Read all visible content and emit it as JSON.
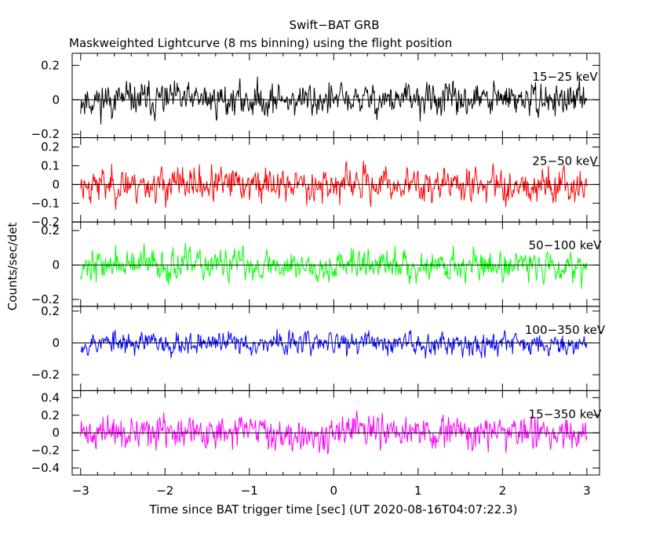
{
  "chart_data": {
    "type": "line",
    "title": "Swift−BAT GRB",
    "subtitle": "Maskweighted Lightcurve (8 ms binning) using the flight position",
    "xlabel": "Time since BAT trigger time [sec] (UT 2020-08-16T04:07:22.3)",
    "ylabel": "Counts/sec/det",
    "xlim": [
      -3.1,
      3.15
    ],
    "xticks": [
      -3,
      -2,
      -1,
      0,
      1,
      2,
      3
    ],
    "xtick_labels": [
      "−3",
      "−2",
      "−1",
      "0",
      "1",
      "2",
      "3"
    ],
    "series": [
      {
        "name": "15−25 keV",
        "color": "#000000",
        "ylim": [
          -0.22,
          0.27
        ],
        "yticks": [
          -0.2,
          0,
          0.2
        ],
        "ytick_labels": [
          "−0.2",
          "0",
          "0.2"
        ],
        "noise_amplitude": 0.075,
        "seed": 11
      },
      {
        "name": "25−50 keV",
        "color": "#ff0000",
        "ylim": [
          -0.2,
          0.25
        ],
        "yticks": [
          -0.2,
          -0.1,
          0,
          0.1,
          0.2
        ],
        "ytick_labels": [
          "−0.2",
          "−0.1",
          "0",
          "0.1",
          "0.2"
        ],
        "noise_amplitude": 0.07,
        "seed": 23
      },
      {
        "name": "50−100 keV",
        "color": "#00ff00",
        "ylim": [
          -0.24,
          0.25
        ],
        "yticks": [
          -0.2,
          0,
          0.2
        ],
        "ytick_labels": [
          "−0.2",
          "0",
          "0.2"
        ],
        "noise_amplitude": 0.07,
        "seed": 37
      },
      {
        "name": "100−350 keV",
        "color": "#0000ff",
        "ylim": [
          -0.3,
          0.23
        ],
        "yticks": [
          -0.2,
          0,
          0.2
        ],
        "ytick_labels": [
          "−0.2",
          "0",
          "0.2"
        ],
        "noise_amplitude": 0.055,
        "seed": 53
      },
      {
        "name": "15−350 keV",
        "color": "#ff00ff",
        "ylim": [
          -0.48,
          0.48
        ],
        "yticks": [
          -0.4,
          -0.2,
          0,
          0.2,
          0.4
        ],
        "ytick_labels": [
          "−0.4",
          "−0.2",
          "0",
          "0.2",
          "0.4"
        ],
        "noise_amplitude": 0.14,
        "seed": 71
      }
    ]
  }
}
